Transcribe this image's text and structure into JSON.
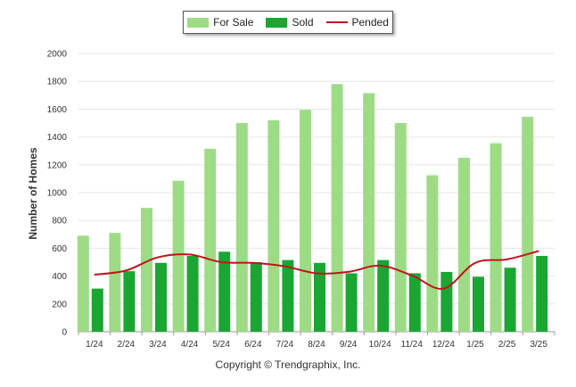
{
  "legend": {
    "for_sale": "For Sale",
    "sold": "Sold",
    "pended": "Pended"
  },
  "copyright": "Copyright © Trendgraphix, Inc.",
  "colors": {
    "for_sale": "#9ddc85",
    "sold": "#1aa632",
    "pended": "#c0141a",
    "grid": "#e6e6e6",
    "axis": "#999999"
  },
  "chart_data": {
    "type": "bar",
    "categories": [
      "1/24",
      "2/24",
      "3/24",
      "4/24",
      "5/24",
      "6/24",
      "7/24",
      "8/24",
      "9/24",
      "10/24",
      "11/24",
      "12/24",
      "1/25",
      "2/25",
      "3/25"
    ],
    "series": [
      {
        "name": "For Sale",
        "type": "bar",
        "values": [
          690,
          710,
          890,
          1085,
          1315,
          1500,
          1520,
          1595,
          1780,
          1715,
          1500,
          1125,
          1250,
          1355,
          1545
        ]
      },
      {
        "name": "Sold",
        "type": "bar",
        "values": [
          310,
          435,
          495,
          545,
          575,
          500,
          515,
          495,
          420,
          515,
          420,
          430,
          395,
          460,
          545
        ]
      },
      {
        "name": "Pended",
        "type": "line",
        "values": [
          410,
          440,
          535,
          555,
          500,
          495,
          470,
          420,
          430,
          475,
          405,
          310,
          495,
          520,
          580
        ]
      }
    ],
    "ylabel": "Number of Homes",
    "xlabel": "",
    "ylim": [
      0,
      2000
    ],
    "yticks": [
      0,
      200,
      400,
      600,
      800,
      1000,
      1200,
      1400,
      1600,
      1800,
      2000
    ],
    "grid": true,
    "legend_position": "top"
  }
}
